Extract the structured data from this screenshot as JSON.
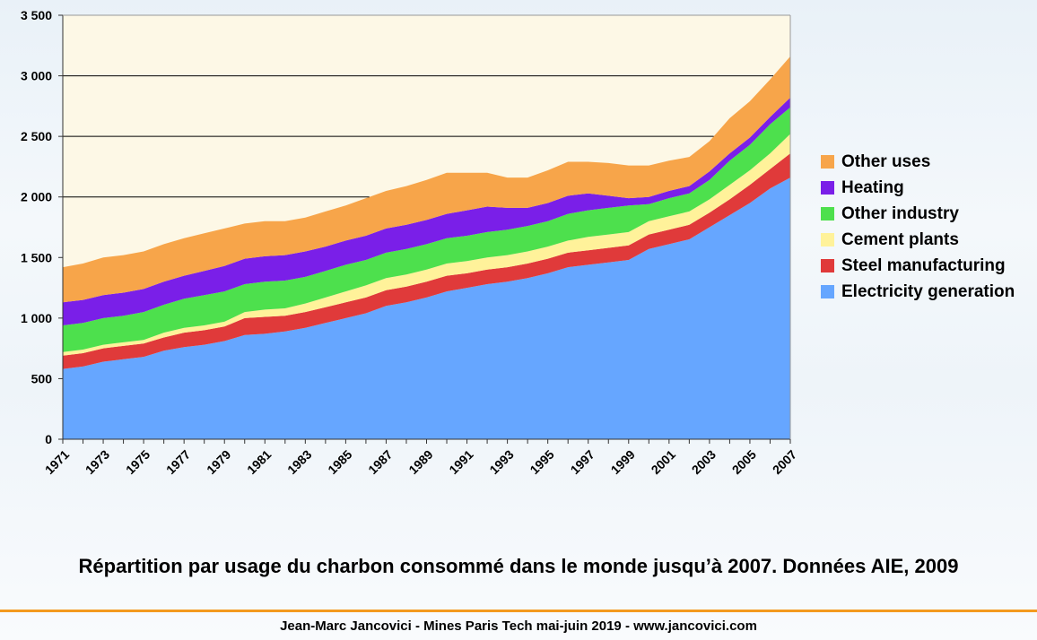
{
  "chart_data": {
    "type": "area",
    "stacked": true,
    "x": [
      1971,
      1972,
      1973,
      1974,
      1975,
      1976,
      1977,
      1978,
      1979,
      1980,
      1981,
      1982,
      1983,
      1984,
      1985,
      1986,
      1987,
      1988,
      1989,
      1990,
      1991,
      1992,
      1993,
      1994,
      1995,
      1996,
      1997,
      1998,
      1999,
      2000,
      2001,
      2002,
      2003,
      2004,
      2005,
      2006,
      2007
    ],
    "x_tick_labels": [
      "1971",
      "1973",
      "1975",
      "1977",
      "1979",
      "1981",
      "1983",
      "1985",
      "1987",
      "1989",
      "1991",
      "1993",
      "1995",
      "1997",
      "1999",
      "2001",
      "2003",
      "2005",
      "2007"
    ],
    "y_tick_labels": [
      "0",
      "500",
      "1 000",
      "1 500",
      "2 000",
      "2 500",
      "3 000",
      "3 500"
    ],
    "ylim": [
      0,
      3500
    ],
    "grid": "horizontal at 2000, 2500 and 3000",
    "legend_position": "right",
    "series": [
      {
        "name": "Electricity generation",
        "color": "#66a6ff",
        "values": [
          580,
          600,
          640,
          660,
          680,
          730,
          760,
          780,
          810,
          860,
          870,
          890,
          920,
          960,
          1000,
          1040,
          1100,
          1130,
          1170,
          1220,
          1250,
          1280,
          1300,
          1330,
          1370,
          1420,
          1440,
          1460,
          1480,
          1570,
          1610,
          1650,
          1750,
          1850,
          1950,
          2070,
          2160
        ]
      },
      {
        "name": "Steel manufacturing",
        "color": "#e03a3a",
        "values": [
          110,
          110,
          110,
          110,
          110,
          110,
          120,
          120,
          120,
          140,
          140,
          130,
          130,
          130,
          130,
          130,
          130,
          130,
          130,
          130,
          120,
          120,
          120,
          120,
          120,
          120,
          120,
          120,
          120,
          120,
          120,
          120,
          120,
          130,
          150,
          160,
          200
        ]
      },
      {
        "name": "Cement plants",
        "color": "#fff29a",
        "values": [
          30,
          30,
          30,
          30,
          30,
          40,
          40,
          40,
          40,
          50,
          60,
          60,
          70,
          80,
          90,
          100,
          100,
          100,
          100,
          100,
          100,
          100,
          100,
          100,
          100,
          100,
          110,
          110,
          110,
          110,
          110,
          110,
          110,
          120,
          120,
          130,
          160
        ]
      },
      {
        "name": "Other industry",
        "color": "#4de04d",
        "values": [
          220,
          220,
          220,
          220,
          230,
          230,
          240,
          250,
          250,
          230,
          230,
          230,
          220,
          220,
          220,
          210,
          210,
          210,
          210,
          210,
          210,
          210,
          210,
          210,
          210,
          220,
          220,
          220,
          220,
          140,
          150,
          150,
          160,
          200,
          210,
          240,
          220
        ]
      },
      {
        "name": "Heating",
        "color": "#7a1fe8",
        "values": [
          190,
          190,
          190,
          190,
          190,
          190,
          190,
          200,
          210,
          210,
          210,
          210,
          210,
          200,
          200,
          200,
          200,
          200,
          200,
          200,
          210,
          210,
          180,
          150,
          150,
          150,
          140,
          100,
          60,
          60,
          60,
          60,
          70,
          60,
          60,
          60,
          80
        ]
      },
      {
        "name": "Other uses",
        "color": "#f7a54a",
        "values": [
          290,
          300,
          310,
          310,
          310,
          310,
          310,
          310,
          310,
          290,
          290,
          280,
          280,
          290,
          290,
          310,
          310,
          320,
          330,
          340,
          310,
          280,
          250,
          250,
          270,
          280,
          260,
          270,
          270,
          260,
          250,
          240,
          250,
          290,
          300,
          310,
          340
        ]
      }
    ]
  },
  "caption": "Répartition par usage du charbon consommé dans le monde jusqu’à 2007. Données AIE, 2009",
  "footer": "Jean-Marc Jancovici - Mines Paris Tech mai-juin 2019 - www.jancovici.com",
  "colors": {
    "plot_background": "#fdf8e6",
    "accent_rule": "#f39a1f"
  }
}
